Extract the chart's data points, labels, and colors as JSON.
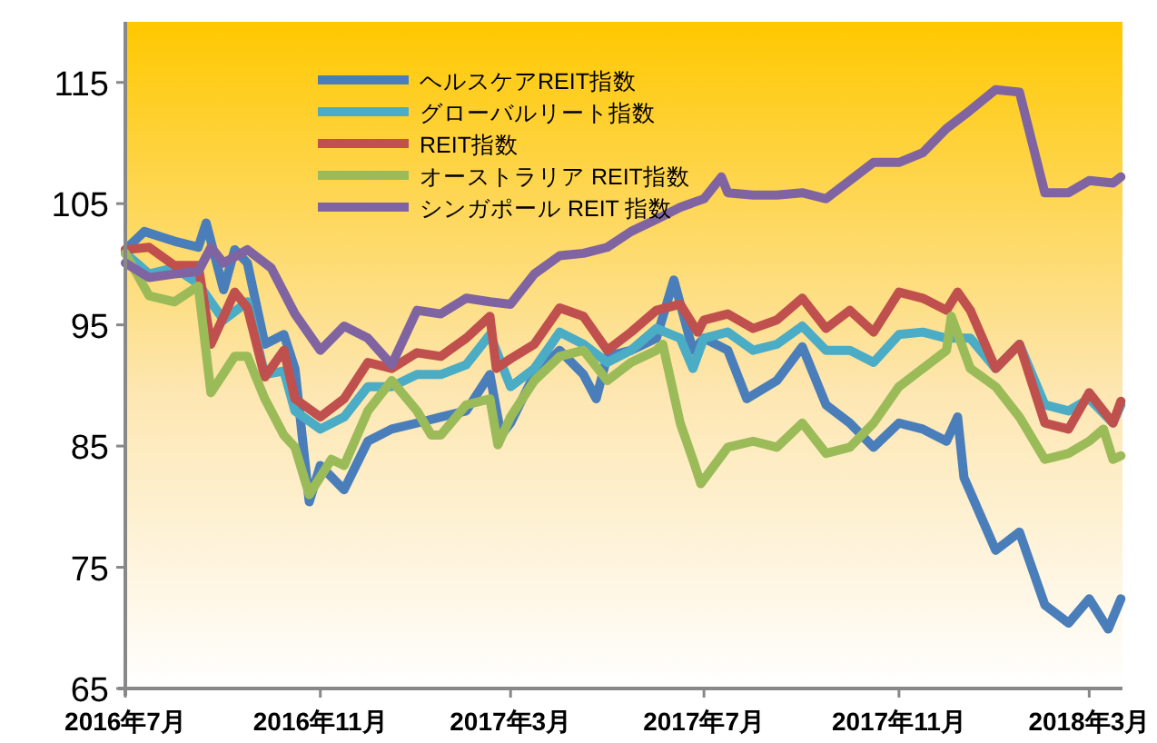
{
  "chart_data": {
    "type": "line",
    "xlim": [
      "2016-07-01",
      "2018-03-22"
    ],
    "ylim": [
      65,
      120
    ],
    "xticks": [
      {
        "value": "2016-07-01",
        "label": "2016年7月"
      },
      {
        "value": "2016-11-01",
        "label": "2016年11月"
      },
      {
        "value": "2017-03-01",
        "label": "2017年3月"
      },
      {
        "value": "2017-07-01",
        "label": "2017年7月"
      },
      {
        "value": "2017-11-01",
        "label": "2017年11月"
      },
      {
        "value": "2018-03-01",
        "label": "2018年3月"
      }
    ],
    "yticks": [
      65,
      75,
      85,
      95,
      105,
      115
    ],
    "legend": "top left",
    "line_style": "solid",
    "series": [
      {
        "name": "ヘルスケアREIT指数",
        "color": "#4a7ebb",
        "x": [
          "2016-07-01",
          "2016-07-13",
          "2016-08-01",
          "2016-08-16",
          "2016-08-21",
          "2016-09-01",
          "2016-09-08",
          "2016-09-16",
          "2016-09-27",
          "2016-10-09",
          "2016-10-16",
          "2016-10-25",
          "2016-11-01",
          "2016-11-16",
          "2016-12-01",
          "2016-12-16",
          "2017-01-01",
          "2017-01-16",
          "2017-02-01",
          "2017-02-16",
          "2017-02-23",
          "2017-03-01",
          "2017-03-16",
          "2017-04-01",
          "2017-04-16",
          "2017-04-24",
          "2017-05-01",
          "2017-05-16",
          "2017-06-01",
          "2017-06-12",
          "2017-06-24",
          "2017-07-01",
          "2017-07-16",
          "2017-07-28",
          "2017-08-16",
          "2017-09-01",
          "2017-09-16",
          "2017-10-01",
          "2017-10-16",
          "2017-11-01",
          "2017-11-16",
          "2017-12-01",
          "2017-12-08",
          "2017-12-12",
          "2018-01-01",
          "2018-01-16",
          "2018-02-01",
          "2018-02-16",
          "2018-03-01",
          "2018-03-13",
          "2018-03-21"
        ],
        "values": [
          101.2,
          102.7,
          101.9,
          101.4,
          103.4,
          97.9,
          101.2,
          100.1,
          93.4,
          94.2,
          91.4,
          80.4,
          83.4,
          81.4,
          85.4,
          86.4,
          86.9,
          87.4,
          87.9,
          90.9,
          85.9,
          86.9,
          90.9,
          92.9,
          90.9,
          88.9,
          92.4,
          92.9,
          93.9,
          98.7,
          92.9,
          93.9,
          92.9,
          88.9,
          90.4,
          93.2,
          88.4,
          86.9,
          84.9,
          86.9,
          86.4,
          85.4,
          87.4,
          82.4,
          76.4,
          77.9,
          71.9,
          70.4,
          72.4,
          69.9,
          72.4
        ]
      },
      {
        "name": "グローバルリート指数",
        "color": "#4bacc6",
        "x": [
          "2016-07-01",
          "2016-07-16",
          "2016-08-01",
          "2016-08-16",
          "2016-09-01",
          "2016-09-16",
          "2016-09-27",
          "2016-10-09",
          "2016-10-16",
          "2016-11-01",
          "2016-11-16",
          "2016-12-01",
          "2016-12-16",
          "2017-01-01",
          "2017-01-16",
          "2017-02-01",
          "2017-02-16",
          "2017-03-01",
          "2017-03-16",
          "2017-04-01",
          "2017-04-16",
          "2017-05-01",
          "2017-05-16",
          "2017-06-01",
          "2017-06-16",
          "2017-06-24",
          "2017-07-01",
          "2017-07-16",
          "2017-08-01",
          "2017-08-16",
          "2017-09-01",
          "2017-09-16",
          "2017-10-01",
          "2017-10-16",
          "2017-11-01",
          "2017-11-16",
          "2017-12-01",
          "2017-12-16",
          "2018-01-01",
          "2018-01-16",
          "2018-02-01",
          "2018-02-16",
          "2018-03-01",
          "2018-03-16",
          "2018-03-21"
        ],
        "values": [
          100.9,
          99.2,
          99.7,
          98.4,
          95.4,
          96.9,
          90.9,
          91.2,
          87.9,
          86.4,
          87.4,
          89.9,
          89.9,
          90.9,
          90.9,
          91.7,
          94.2,
          89.9,
          91.4,
          94.4,
          93.4,
          91.9,
          92.9,
          94.7,
          93.9,
          91.4,
          93.9,
          94.4,
          92.9,
          93.4,
          94.9,
          92.9,
          92.9,
          91.9,
          94.2,
          94.4,
          93.9,
          93.9,
          91.4,
          93.4,
          88.4,
          87.9,
          88.9,
          86.9,
          88.4
        ]
      },
      {
        "name": "REIT指数",
        "color": "#c0504d",
        "x": [
          "2016-07-01",
          "2016-07-16",
          "2016-08-01",
          "2016-08-16",
          "2016-08-24",
          "2016-09-08",
          "2016-09-16",
          "2016-09-27",
          "2016-10-09",
          "2016-10-16",
          "2016-11-01",
          "2016-11-16",
          "2016-12-01",
          "2016-12-16",
          "2017-01-01",
          "2017-01-16",
          "2017-02-01",
          "2017-02-16",
          "2017-02-20",
          "2017-03-01",
          "2017-03-16",
          "2017-04-01",
          "2017-04-16",
          "2017-05-01",
          "2017-05-16",
          "2017-06-01",
          "2017-06-16",
          "2017-06-27",
          "2017-07-01",
          "2017-07-16",
          "2017-08-01",
          "2017-08-16",
          "2017-09-01",
          "2017-09-16",
          "2017-10-01",
          "2017-10-16",
          "2017-11-01",
          "2017-11-16",
          "2017-12-01",
          "2017-12-08",
          "2017-12-16",
          "2018-01-01",
          "2018-01-16",
          "2018-02-01",
          "2018-02-16",
          "2018-03-01",
          "2018-03-16",
          "2018-03-21"
        ],
        "values": [
          101.2,
          101.4,
          99.9,
          99.9,
          93.4,
          97.7,
          96.4,
          90.7,
          92.9,
          88.9,
          87.4,
          88.9,
          91.9,
          91.4,
          92.7,
          92.4,
          93.9,
          95.7,
          91.4,
          92.2,
          93.4,
          96.4,
          95.7,
          92.9,
          94.4,
          96.2,
          96.7,
          94.4,
          95.4,
          95.9,
          94.7,
          95.4,
          97.2,
          94.7,
          96.2,
          94.4,
          97.7,
          97.2,
          96.2,
          97.7,
          96.2,
          91.4,
          93.4,
          86.9,
          86.4,
          89.4,
          86.9,
          88.7
        ]
      },
      {
        "name": "オーストラリア REIT指数",
        "color": "#9bbb59",
        "x": [
          "2016-07-01",
          "2016-07-16",
          "2016-08-01",
          "2016-08-16",
          "2016-08-24",
          "2016-09-08",
          "2016-09-16",
          "2016-09-27",
          "2016-10-09",
          "2016-10-16",
          "2016-10-25",
          "2016-11-08",
          "2016-11-16",
          "2016-12-01",
          "2016-12-16",
          "2017-01-01",
          "2017-01-10",
          "2017-01-16",
          "2017-02-01",
          "2017-02-16",
          "2017-02-21",
          "2017-03-01",
          "2017-03-16",
          "2017-04-01",
          "2017-04-16",
          "2017-05-01",
          "2017-05-16",
          "2017-06-01",
          "2017-06-05",
          "2017-06-16",
          "2017-06-24",
          "2017-06-29",
          "2017-07-16",
          "2017-08-01",
          "2017-08-16",
          "2017-09-01",
          "2017-09-16",
          "2017-10-01",
          "2017-10-16",
          "2017-11-01",
          "2017-11-16",
          "2017-12-01",
          "2017-12-04",
          "2017-12-16",
          "2018-01-01",
          "2018-01-16",
          "2018-02-01",
          "2018-02-16",
          "2018-03-01",
          "2018-03-10",
          "2018-03-16",
          "2018-03-21"
        ],
        "values": [
          100.9,
          97.4,
          96.9,
          98.2,
          89.4,
          92.4,
          92.4,
          88.9,
          85.9,
          84.9,
          81.0,
          83.9,
          83.4,
          87.9,
          90.4,
          87.9,
          85.9,
          85.9,
          88.4,
          88.9,
          85.1,
          87.4,
          90.4,
          92.4,
          92.9,
          90.4,
          91.9,
          92.9,
          93.4,
          86.9,
          83.9,
          81.9,
          84.9,
          85.4,
          84.9,
          86.9,
          84.4,
          84.9,
          86.9,
          89.9,
          91.4,
          92.9,
          95.7,
          91.4,
          89.9,
          87.4,
          83.9,
          84.4,
          85.4,
          86.4,
          83.9,
          84.2
        ]
      },
      {
        "name": "シンガポール REIT 指数",
        "color": "#8064a2",
        "x": [
          "2016-07-01",
          "2016-07-16",
          "2016-08-01",
          "2016-08-16",
          "2016-08-24",
          "2016-09-01",
          "2016-09-16",
          "2016-10-01",
          "2016-10-16",
          "2016-11-01",
          "2016-11-16",
          "2016-12-01",
          "2016-12-16",
          "2017-01-01",
          "2017-01-16",
          "2017-02-01",
          "2017-02-16",
          "2017-03-01",
          "2017-03-16",
          "2017-04-01",
          "2017-04-16",
          "2017-05-01",
          "2017-05-16",
          "2017-06-01",
          "2017-06-16",
          "2017-07-01",
          "2017-07-12",
          "2017-07-16",
          "2017-08-01",
          "2017-08-16",
          "2017-09-01",
          "2017-09-16",
          "2017-10-01",
          "2017-10-16",
          "2017-11-01",
          "2017-11-16",
          "2017-12-01",
          "2017-12-16",
          "2018-01-01",
          "2018-01-16",
          "2018-02-01",
          "2018-02-16",
          "2018-03-01",
          "2018-03-16",
          "2018-03-21"
        ],
        "values": [
          100.1,
          98.9,
          99.2,
          99.4,
          101.4,
          100.1,
          101.2,
          99.7,
          95.9,
          92.9,
          94.9,
          93.9,
          91.7,
          96.2,
          95.9,
          97.2,
          96.9,
          96.7,
          99.2,
          100.7,
          100.9,
          101.4,
          102.7,
          103.7,
          104.7,
          105.4,
          107.2,
          105.9,
          105.7,
          105.7,
          105.9,
          105.4,
          106.9,
          108.4,
          108.4,
          109.2,
          111.2,
          112.7,
          114.4,
          114.2,
          105.9,
          105.9,
          106.9,
          106.7,
          107.2
        ]
      }
    ]
  }
}
